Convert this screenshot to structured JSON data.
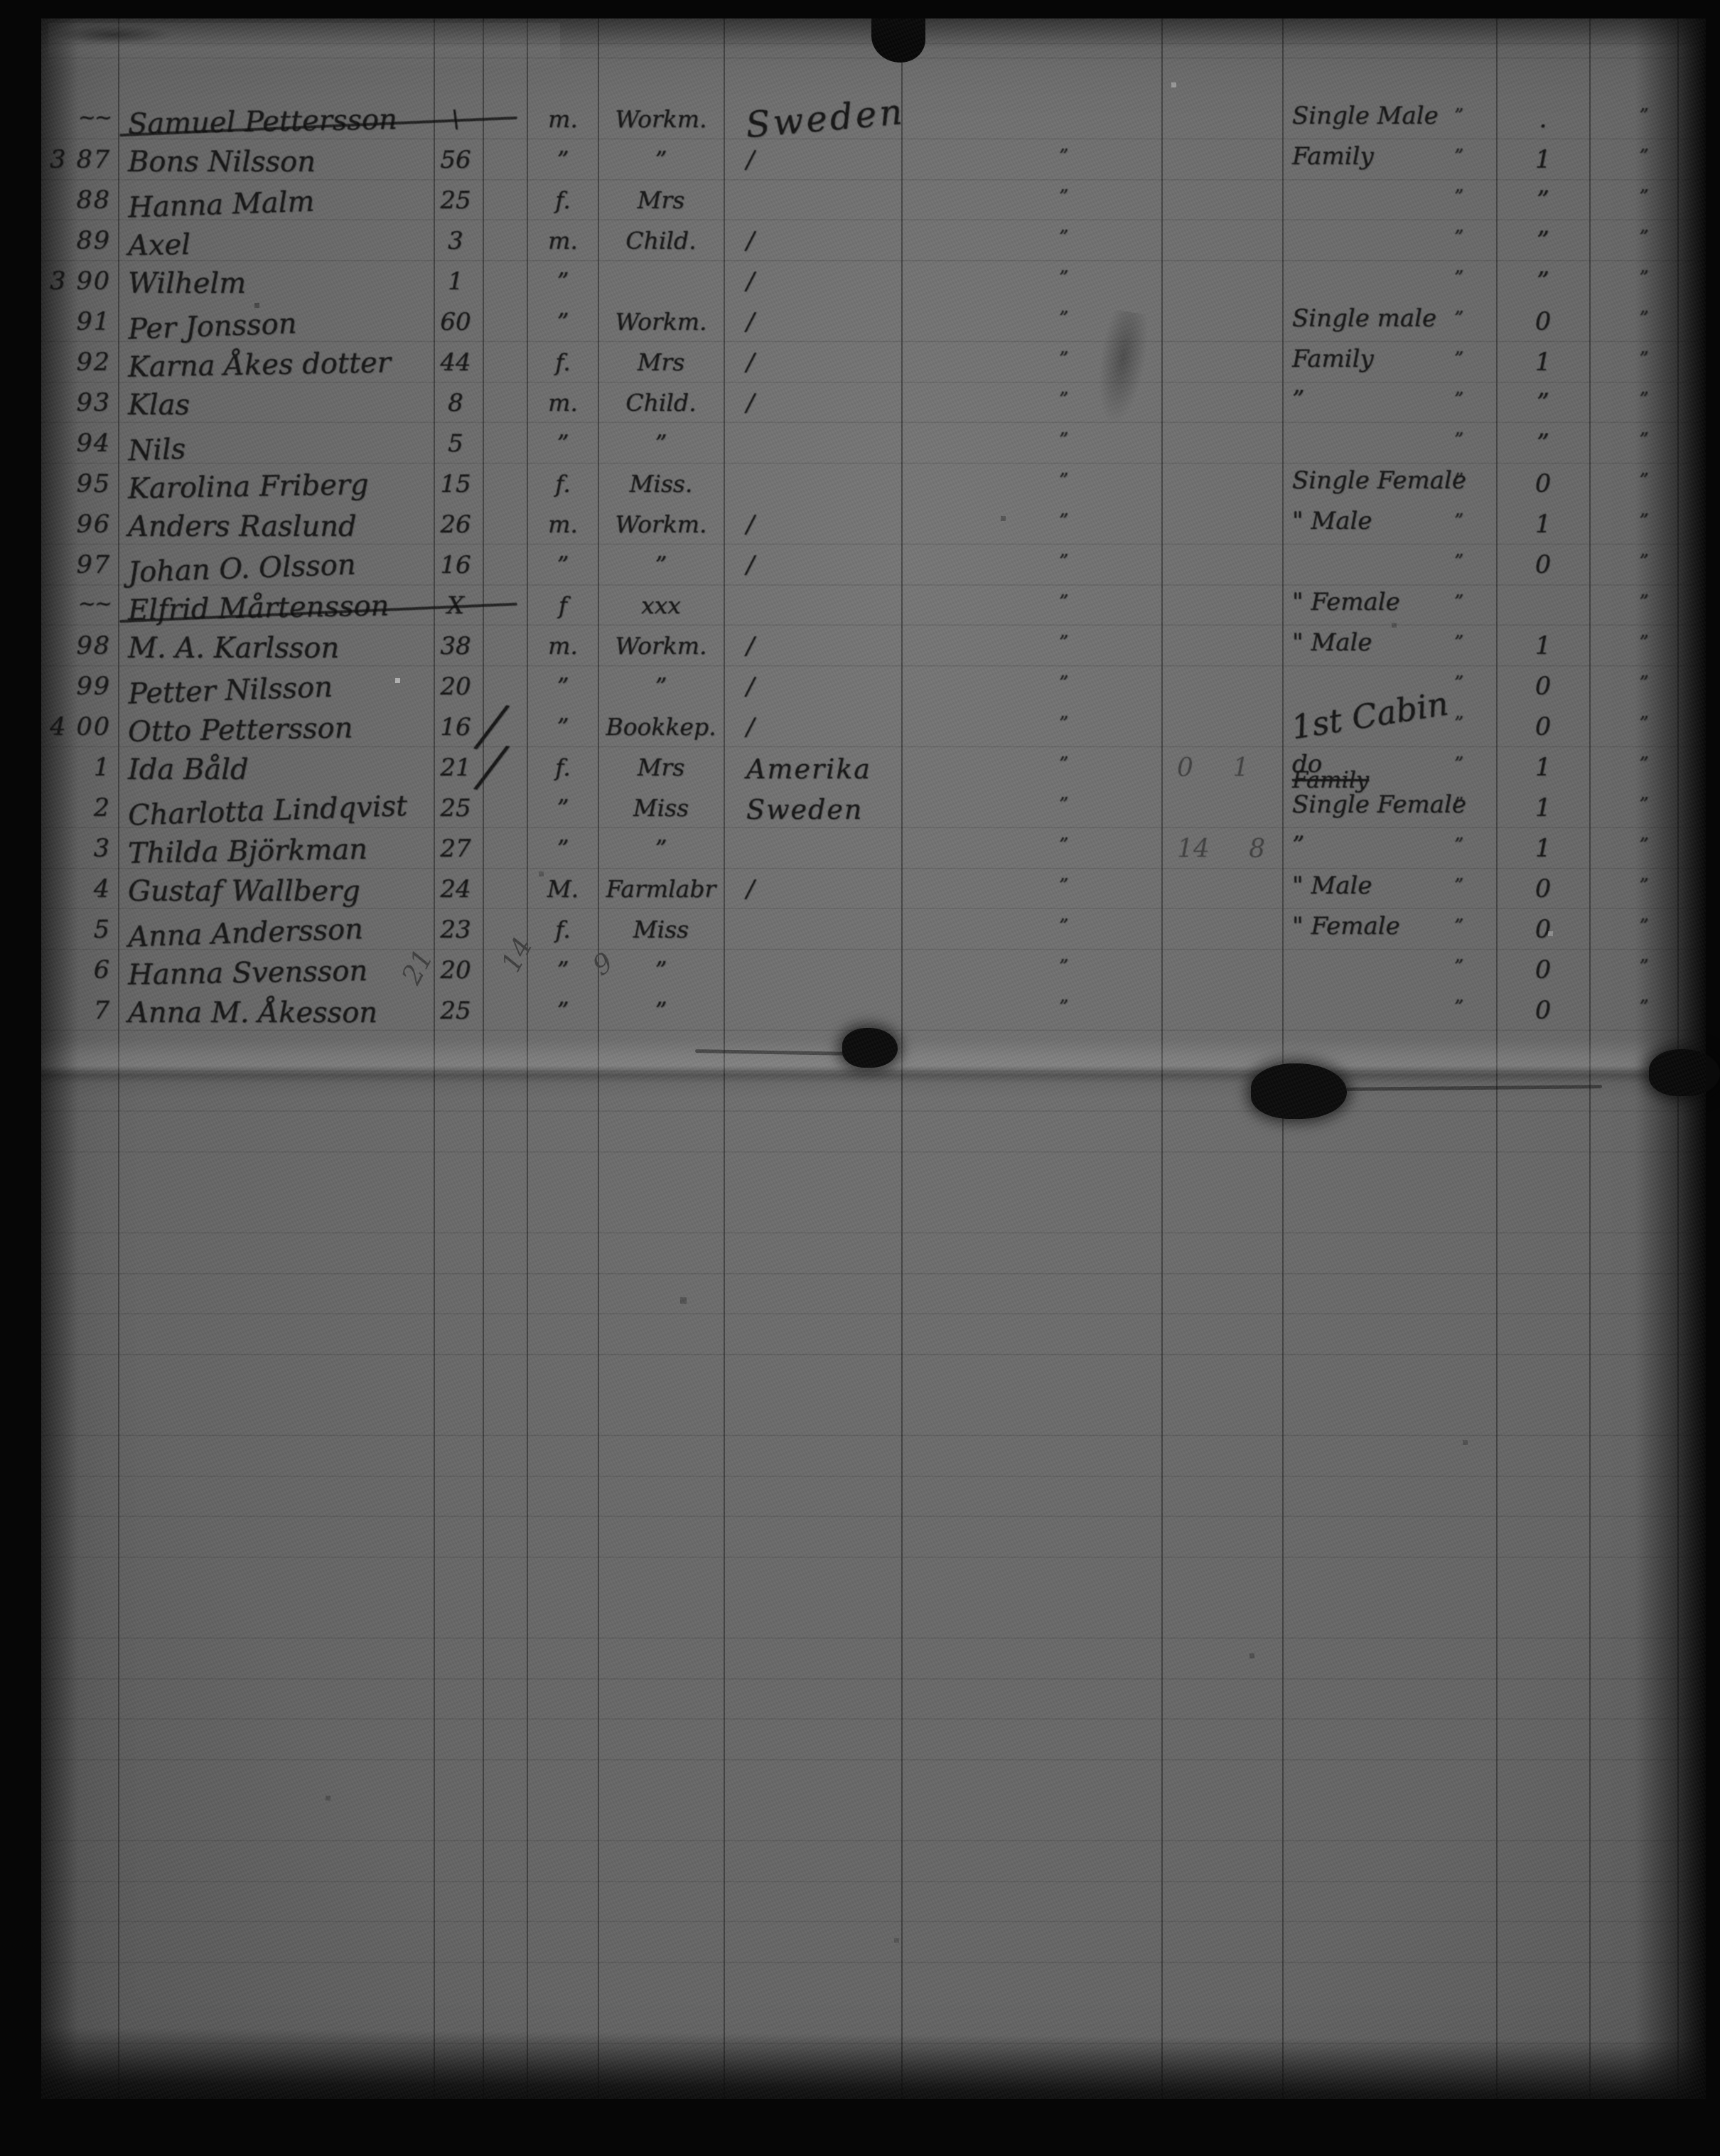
{
  "document": {
    "kind_label": "",
    "totals_pencil": {
      "under_name_column": "21",
      "under_age_column": "14",
      "under_gender_column": "9"
    }
  },
  "colors": {
    "paper": "#6c6c6c",
    "ink": "#141414",
    "pencil": "#3e3e3e",
    "frame": "#060606"
  },
  "rows": [
    {
      "mark": "~~",
      "no": "",
      "name": "Samuel Pettersson",
      "age": "\\",
      "chk": "",
      "g": "m.",
      "occ": "Workm.",
      "dest": "Sweden",
      "pen": "",
      "cat": "Single Male",
      "cat2": "",
      "cnt": ".",
      "crossed": true,
      "destStyle": "big"
    },
    {
      "mark": "",
      "no": "3 87",
      "name": "Bons Nilsson",
      "age": "56",
      "chk": "",
      "g": "\"",
      "occ": "\"",
      "dest": "/",
      "pen": "",
      "cat": "Family",
      "cat2": "",
      "cnt": "1",
      "crossed": false,
      "destStyle": ""
    },
    {
      "mark": "",
      "no": "88",
      "name": "Hanna Malm",
      "age": "25",
      "chk": "",
      "g": "f.",
      "occ": "Mrs",
      "dest": "",
      "pen": "",
      "cat": "",
      "cat2": "",
      "cnt": "\"",
      "crossed": false,
      "destStyle": ""
    },
    {
      "mark": "",
      "no": "89",
      "name": "Axel",
      "age": "3",
      "chk": "",
      "g": "m.",
      "occ": "Child.",
      "dest": "/",
      "pen": "",
      "cat": "",
      "cat2": "",
      "cnt": "\"",
      "crossed": false,
      "destStyle": ""
    },
    {
      "mark": "",
      "no": "3 90",
      "name": "Wilhelm",
      "age": "1",
      "chk": "",
      "g": "\"",
      "occ": "",
      "dest": "/",
      "pen": "",
      "cat": "",
      "cat2": "",
      "cnt": "\"",
      "crossed": false,
      "destStyle": ""
    },
    {
      "mark": "",
      "no": "91",
      "name": "Per Jonsson",
      "age": "60",
      "chk": "",
      "g": "\"",
      "occ": "Workm.",
      "dest": "/",
      "pen": "",
      "cat": "Single male",
      "cat2": "",
      "cnt": "0",
      "crossed": false,
      "destStyle": ""
    },
    {
      "mark": "",
      "no": "92",
      "name": "Karna Åkes dotter",
      "age": "44",
      "chk": "",
      "g": "f.",
      "occ": "Mrs",
      "dest": "/",
      "pen": "",
      "cat": "Family",
      "cat2": "",
      "cnt": "1",
      "crossed": false,
      "destStyle": ""
    },
    {
      "mark": "",
      "no": "93",
      "name": "Klas",
      "age": "8",
      "chk": "",
      "g": "m.",
      "occ": "Child.",
      "dest": "/",
      "pen": "",
      "cat": "\"",
      "cat2": "",
      "cnt": "\"",
      "crossed": false,
      "destStyle": ""
    },
    {
      "mark": "",
      "no": "94",
      "name": "Nils",
      "age": "5",
      "chk": "",
      "g": "\"",
      "occ": "\"",
      "dest": "",
      "pen": "",
      "cat": "",
      "cat2": "",
      "cnt": "\"",
      "crossed": false,
      "destStyle": ""
    },
    {
      "mark": "",
      "no": "95",
      "name": "Karolina Friberg",
      "age": "15",
      "chk": "",
      "g": "f.",
      "occ": "Miss.",
      "dest": "",
      "pen": "",
      "cat": "Single Female",
      "cat2": "",
      "cnt": "0",
      "crossed": false,
      "destStyle": ""
    },
    {
      "mark": "",
      "no": "96",
      "name": "Anders Raslund",
      "age": "26",
      "chk": "",
      "g": "m.",
      "occ": "Workm.",
      "dest": "/",
      "pen": "",
      "cat": "\" Male",
      "cat2": "",
      "cnt": "1",
      "crossed": false,
      "destStyle": ""
    },
    {
      "mark": "",
      "no": "97",
      "name": "Johan O. Olsson",
      "age": "16",
      "chk": "",
      "g": "\"",
      "occ": "\"",
      "dest": "/",
      "pen": "",
      "cat": "",
      "cat2": "",
      "cnt": "0",
      "crossed": false,
      "destStyle": ""
    },
    {
      "mark": "~~",
      "no": "",
      "name": "Elfrid Mårtensson",
      "age": "X",
      "chk": "",
      "g": "f",
      "occ": "xxx",
      "dest": "",
      "pen": "",
      "cat": "\" Female",
      "cat2": "",
      "cnt": "",
      "crossed": true,
      "destStyle": ""
    },
    {
      "mark": "",
      "no": "98",
      "name": "M. A. Karlsson",
      "age": "38",
      "chk": "",
      "g": "m.",
      "occ": "Workm.",
      "dest": "/",
      "pen": "",
      "cat": "\" Male",
      "cat2": "",
      "cnt": "1",
      "crossed": false,
      "destStyle": ""
    },
    {
      "mark": "",
      "no": "99",
      "name": "Petter Nilsson",
      "age": "20",
      "chk": "",
      "g": "\"",
      "occ": "\"",
      "dest": "/",
      "pen": "",
      "cat": "",
      "cat2": "",
      "cnt": "0",
      "crossed": false,
      "destStyle": ""
    },
    {
      "mark": "",
      "no": "4 00",
      "name": "Otto Pettersson",
      "age": "16",
      "chk": "╱",
      "g": "\"",
      "occ": "Bookkep.",
      "dest": "/",
      "pen": "",
      "cat": "1st Cabin",
      "cat2": "",
      "cnt": "0",
      "crossed": false,
      "destStyle": "",
      "catStyle": "big"
    },
    {
      "mark": "",
      "no": "1",
      "name": "Ida Båld",
      "age": "21",
      "chk": "╱",
      "g": "f.",
      "occ": "Mrs",
      "dest": "Amerika",
      "pen": "0  1",
      "cat": "do",
      "cat2": "Family",
      "cnt": "1",
      "crossed": false,
      "destStyle": "mid"
    },
    {
      "mark": "",
      "no": "2",
      "name": "Charlotta Lindqvist",
      "age": "25",
      "chk": "",
      "g": "\"",
      "occ": "Miss",
      "dest": "Sweden",
      "pen": "",
      "cat": "Single Female",
      "cat2": "",
      "cnt": "1",
      "crossed": false,
      "destStyle": "mid"
    },
    {
      "mark": "",
      "no": "3",
      "name": "Thilda Björkman",
      "age": "27",
      "chk": "",
      "g": "\"",
      "occ": "\"",
      "dest": "",
      "pen": "14  8",
      "cat": "\"",
      "cat2": "",
      "cnt": "1",
      "crossed": false,
      "destStyle": ""
    },
    {
      "mark": "",
      "no": "4",
      "name": "Gustaf Wallberg",
      "age": "24",
      "chk": "",
      "g": "M.",
      "occ": "Farmlabr",
      "dest": "/",
      "pen": "",
      "cat": "\" Male",
      "cat2": "",
      "cnt": "0",
      "crossed": false,
      "destStyle": ""
    },
    {
      "mark": "",
      "no": "5",
      "name": "Anna Andersson",
      "age": "23",
      "chk": "",
      "g": "f.",
      "occ": "Miss",
      "dest": "",
      "pen": "",
      "cat": "\" Female",
      "cat2": "",
      "cnt": "0",
      "crossed": false,
      "destStyle": ""
    },
    {
      "mark": "",
      "no": "6",
      "name": "Hanna Svensson",
      "age": "20",
      "chk": "",
      "g": "\"",
      "occ": "\"",
      "dest": "",
      "pen": "",
      "cat": "",
      "cat2": "",
      "cnt": "0",
      "crossed": false,
      "destStyle": ""
    },
    {
      "mark": "",
      "no": "7",
      "name": "Anna M. Åkesson",
      "age": "25",
      "chk": "",
      "g": "\"",
      "occ": "\"",
      "dest": "",
      "pen": "",
      "cat": "",
      "cat2": "",
      "cnt": "0",
      "crossed": false,
      "destStyle": ""
    }
  ]
}
